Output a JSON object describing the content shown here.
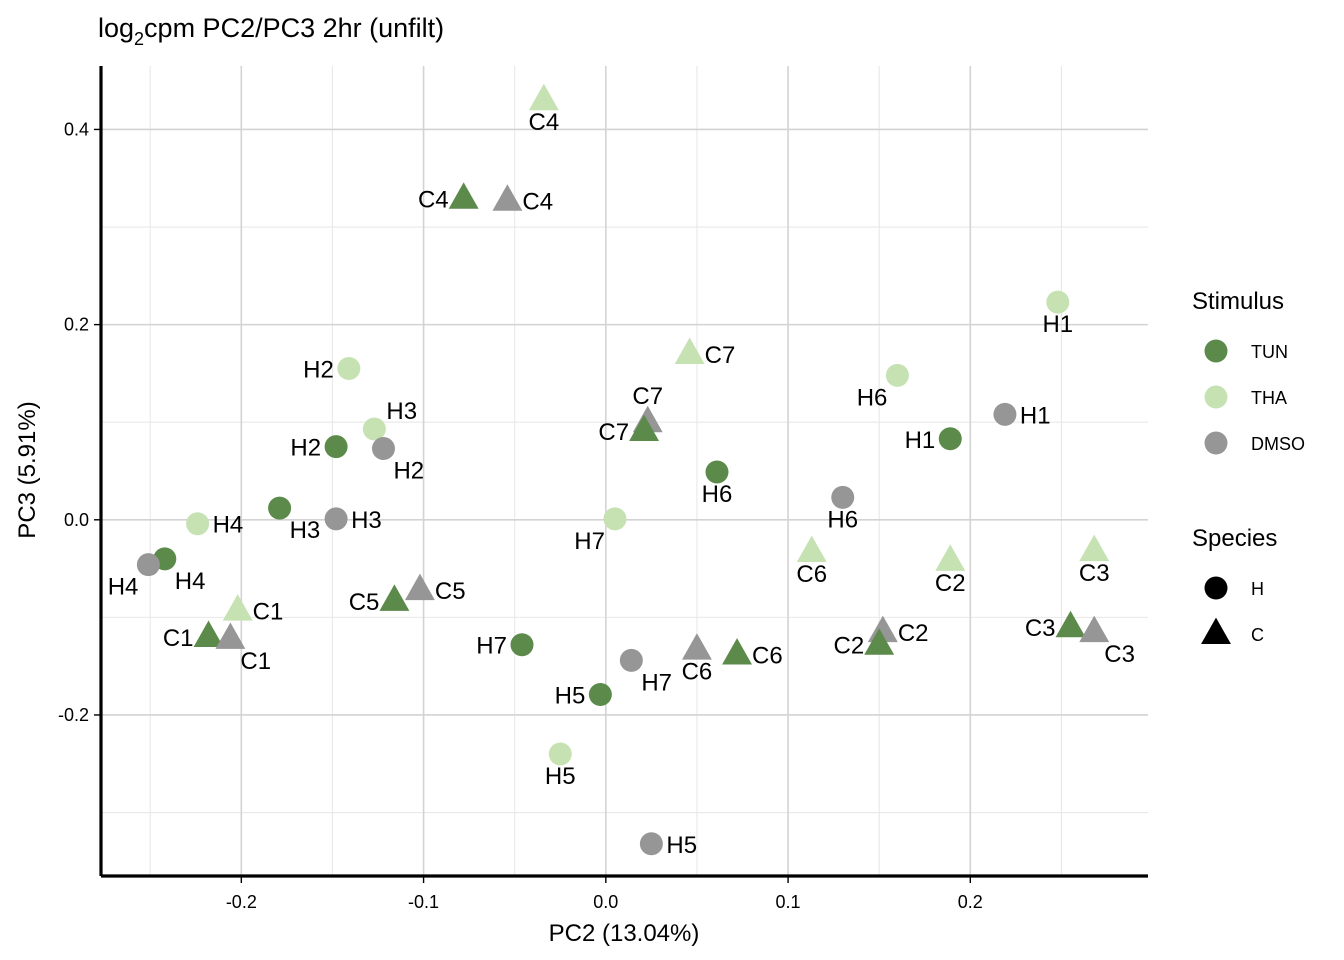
{
  "chart_data": {
    "type": "scatter",
    "title_prefix": "log",
    "title_sub": "2",
    "title_suffix": "cpm PC2/PC3 2hr (unfilt)",
    "xlabel": "PC2 (13.04%)",
    "ylabel": "PC3 (5.91%)",
    "xlim": [
      -0.277,
      0.2975
    ],
    "ylim": [
      -0.365,
      0.465
    ],
    "x_ticks": [
      -0.2,
      -0.1,
      0.0,
      0.1,
      0.2
    ],
    "x_tick_labels": [
      "-0.2",
      "-0.1",
      "0.0",
      "0.1",
      "0.2"
    ],
    "y_ticks": [
      -0.2,
      0.0,
      0.2,
      0.4
    ],
    "y_tick_labels": [
      "-0.2",
      "0.0",
      "0.2",
      "0.4"
    ],
    "grid": true,
    "legend_placement": "right",
    "legend": {
      "stimulus_title": "Stimulus",
      "stimulus_items": [
        {
          "name": "TUN",
          "color": "#5b8a4a"
        },
        {
          "name": "THA",
          "color": "#c6e2b3"
        },
        {
          "name": "DMSO",
          "color": "#969696"
        }
      ],
      "species_title": "Species",
      "species_items": [
        {
          "name": "H",
          "shape": "circle"
        },
        {
          "name": "C",
          "shape": "triangle"
        }
      ]
    },
    "points": [
      {
        "label": "C4",
        "x": -0.034,
        "y": 0.43,
        "stimulus": "THA",
        "species": "C",
        "lpos": "below"
      },
      {
        "label": "C4",
        "x": -0.078,
        "y": 0.329,
        "stimulus": "TUN",
        "species": "C",
        "lpos": "left"
      },
      {
        "label": "C4",
        "x": -0.054,
        "y": 0.327,
        "stimulus": "DMSO",
        "species": "C",
        "lpos": "right"
      },
      {
        "label": "H1",
        "x": 0.248,
        "y": 0.223,
        "stimulus": "THA",
        "species": "H",
        "lpos": "below"
      },
      {
        "label": "C7",
        "x": 0.046,
        "y": 0.17,
        "stimulus": "THA",
        "species": "C",
        "lpos": "right"
      },
      {
        "label": "H2",
        "x": -0.141,
        "y": 0.155,
        "stimulus": "THA",
        "species": "H",
        "lpos": "left"
      },
      {
        "label": "H6",
        "x": 0.16,
        "y": 0.148,
        "stimulus": "THA",
        "species": "H",
        "lpos": "belowleft"
      },
      {
        "label": "H1",
        "x": 0.219,
        "y": 0.108,
        "stimulus": "DMSO",
        "species": "H",
        "lpos": "right"
      },
      {
        "label": "C7",
        "x": 0.023,
        "y": 0.1,
        "stimulus": "DMSO",
        "species": "C",
        "lpos": "above"
      },
      {
        "label": "H3",
        "x": -0.127,
        "y": 0.093,
        "stimulus": "THA",
        "species": "H",
        "lpos": "aboveright"
      },
      {
        "label": "C7",
        "x": 0.021,
        "y": 0.091,
        "stimulus": "TUN",
        "species": "C",
        "lpos": "left"
      },
      {
        "label": "H1",
        "x": 0.189,
        "y": 0.083,
        "stimulus": "TUN",
        "species": "H",
        "lpos": "left"
      },
      {
        "label": "H2",
        "x": -0.148,
        "y": 0.075,
        "stimulus": "TUN",
        "species": "H",
        "lpos": "left"
      },
      {
        "label": "H2",
        "x": -0.122,
        "y": 0.073,
        "stimulus": "DMSO",
        "species": "H",
        "lpos": "belowright"
      },
      {
        "label": "H6",
        "x": 0.061,
        "y": 0.049,
        "stimulus": "TUN",
        "species": "H",
        "lpos": "below"
      },
      {
        "label": "H6",
        "x": 0.13,
        "y": 0.023,
        "stimulus": "DMSO",
        "species": "H",
        "lpos": "below"
      },
      {
        "label": "H3",
        "x": -0.179,
        "y": 0.012,
        "stimulus": "TUN",
        "species": "H",
        "lpos": "belowright"
      },
      {
        "label": "H7",
        "x": 0.005,
        "y": 0.001,
        "stimulus": "THA",
        "species": "H",
        "lpos": "belowleft"
      },
      {
        "label": "H3",
        "x": -0.148,
        "y": 0.001,
        "stimulus": "DMSO",
        "species": "H",
        "lpos": "right"
      },
      {
        "label": "H4",
        "x": -0.224,
        "y": -0.004,
        "stimulus": "THA",
        "species": "H",
        "lpos": "right"
      },
      {
        "label": "C6",
        "x": 0.113,
        "y": -0.033,
        "stimulus": "THA",
        "species": "C",
        "lpos": "below"
      },
      {
        "label": "C2",
        "x": 0.189,
        "y": -0.042,
        "stimulus": "THA",
        "species": "C",
        "lpos": "below"
      },
      {
        "label": "C3",
        "x": 0.268,
        "y": -0.032,
        "stimulus": "THA",
        "species": "C",
        "lpos": "below"
      },
      {
        "label": "H4",
        "x": -0.242,
        "y": -0.04,
        "stimulus": "TUN",
        "species": "H",
        "lpos": "belowright"
      },
      {
        "label": "H4",
        "x": -0.251,
        "y": -0.046,
        "stimulus": "DMSO",
        "species": "H",
        "lpos": "belowleft"
      },
      {
        "label": "C5",
        "x": -0.102,
        "y": -0.072,
        "stimulus": "DMSO",
        "species": "C",
        "lpos": "right"
      },
      {
        "label": "C5",
        "x": -0.116,
        "y": -0.083,
        "stimulus": "TUN",
        "species": "C",
        "lpos": "left"
      },
      {
        "label": "C1",
        "x": -0.202,
        "y": -0.093,
        "stimulus": "THA",
        "species": "C",
        "lpos": "right"
      },
      {
        "label": "C3",
        "x": 0.255,
        "y": -0.11,
        "stimulus": "TUN",
        "species": "C",
        "lpos": "left"
      },
      {
        "label": "C3",
        "x": 0.268,
        "y": -0.115,
        "stimulus": "DMSO",
        "species": "C",
        "lpos": "belowright"
      },
      {
        "label": "C2",
        "x": 0.152,
        "y": -0.115,
        "stimulus": "DMSO",
        "species": "C",
        "lpos": "right"
      },
      {
        "label": "C1",
        "x": -0.218,
        "y": -0.12,
        "stimulus": "TUN",
        "species": "C",
        "lpos": "left"
      },
      {
        "label": "C1",
        "x": -0.206,
        "y": -0.122,
        "stimulus": "DMSO",
        "species": "C",
        "lpos": "belowright"
      },
      {
        "label": "C2",
        "x": 0.15,
        "y": -0.128,
        "stimulus": "TUN",
        "species": "C",
        "lpos": "left"
      },
      {
        "label": "H7",
        "x": -0.046,
        "y": -0.128,
        "stimulus": "TUN",
        "species": "H",
        "lpos": "left"
      },
      {
        "label": "C6",
        "x": 0.05,
        "y": -0.133,
        "stimulus": "DMSO",
        "species": "C",
        "lpos": "below"
      },
      {
        "label": "C6",
        "x": 0.072,
        "y": -0.138,
        "stimulus": "TUN",
        "species": "C",
        "lpos": "right"
      },
      {
        "label": "H7",
        "x": 0.014,
        "y": -0.144,
        "stimulus": "DMSO",
        "species": "H",
        "lpos": "belowright"
      },
      {
        "label": "H5",
        "x": -0.003,
        "y": -0.179,
        "stimulus": "TUN",
        "species": "H",
        "lpos": "left"
      },
      {
        "label": "H5",
        "x": -0.025,
        "y": -0.24,
        "stimulus": "THA",
        "species": "H",
        "lpos": "below"
      },
      {
        "label": "H5",
        "x": 0.025,
        "y": -0.332,
        "stimulus": "DMSO",
        "species": "H",
        "lpos": "right"
      }
    ]
  }
}
